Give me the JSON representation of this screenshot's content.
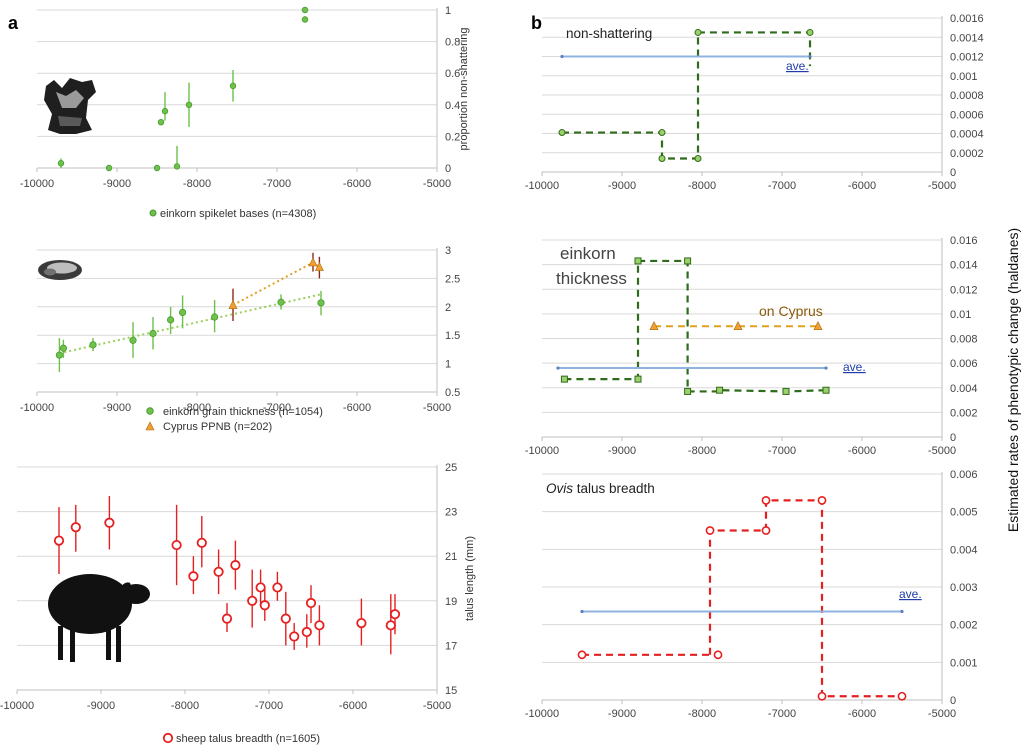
{
  "panel_labels": [
    "a",
    "b"
  ],
  "right_axis_title": "Estimated rates of phenotypic change (haldanes)",
  "colors": {
    "green_marker": "#6cc24a",
    "green_dark": "#2e6b1a",
    "orange_marker": "#f0a030",
    "orange_line": "#e0a020",
    "red": "#e52020",
    "ave_line": "#8fb3e0",
    "ave_text": "#1f3ea8",
    "grid": "#d9d9d9"
  },
  "icons": [
    "spikelet-base-photo",
    "grain-photo",
    "sheep-silhouette"
  ],
  "chart_data": [
    {
      "id": "a1",
      "type": "scatter",
      "legend": [
        "einkorn spikelet bases (n=4308)"
      ],
      "ylabel": "proportion non-shattering",
      "xlim": [
        -10000,
        -5000
      ],
      "ylim": [
        0,
        1
      ],
      "x_ticks": [
        "-10000",
        "-9000",
        "-8000",
        "-7000",
        "-6000",
        "-5000"
      ],
      "y_ticks": [
        "0",
        "0.2",
        "0.4",
        "0.6",
        "0.8",
        "1"
      ],
      "series": [
        {
          "name": "einkorn spikelet bases (n=4308)",
          "points": [
            {
              "x": -9700,
              "y": 0.03,
              "lo": 0.0,
              "hi": 0.06
            },
            {
              "x": -9100,
              "y": 0.0,
              "lo": 0.0,
              "hi": 0.01
            },
            {
              "x": -8500,
              "y": 0.0,
              "lo": 0.0,
              "hi": 0.01
            },
            {
              "x": -8450,
              "y": 0.29,
              "lo": 0.28,
              "hi": 0.3
            },
            {
              "x": -8400,
              "y": 0.36,
              "lo": 0.3,
              "hi": 0.48
            },
            {
              "x": -8250,
              "y": 0.01,
              "lo": 0.0,
              "hi": 0.14
            },
            {
              "x": -8100,
              "y": 0.4,
              "lo": 0.26,
              "hi": 0.54
            },
            {
              "x": -7550,
              "y": 0.52,
              "lo": 0.42,
              "hi": 0.62
            },
            {
              "x": -6650,
              "y": 0.94,
              "lo": 0.92,
              "hi": 0.96
            },
            {
              "x": -6650,
              "y": 1.0,
              "lo": 1.0,
              "hi": 1.0
            }
          ]
        }
      ]
    },
    {
      "id": "a2",
      "type": "scatter",
      "legend": [
        "einkorn grain thickness (n=1054)",
        "Cyprus PPNB (n=202)"
      ],
      "xlim": [
        -10000,
        -5000
      ],
      "ylim": [
        0.5,
        3
      ],
      "x_ticks": [
        "-10000",
        "-9000",
        "-8000",
        "-7000",
        "-6000",
        "-5000"
      ],
      "y_ticks": [
        "0.5",
        "1",
        "1.5",
        "2",
        "2.5",
        "3"
      ],
      "series": [
        {
          "name": "einkorn grain thickness (n=1054)",
          "trend": [
            [
              -9720,
              1.18
            ],
            [
              -6450,
              2.22
            ]
          ],
          "points": [
            {
              "x": -9720,
              "y": 1.15,
              "lo": 0.85,
              "hi": 1.45
            },
            {
              "x": -9670,
              "y": 1.27,
              "lo": 1.1,
              "hi": 1.42
            },
            {
              "x": -9300,
              "y": 1.33,
              "lo": 1.22,
              "hi": 1.45
            },
            {
              "x": -8800,
              "y": 1.41,
              "lo": 1.1,
              "hi": 1.73
            },
            {
              "x": -8550,
              "y": 1.53,
              "lo": 1.25,
              "hi": 1.82
            },
            {
              "x": -8330,
              "y": 1.77,
              "lo": 1.52,
              "hi": 2.0
            },
            {
              "x": -8180,
              "y": 1.9,
              "lo": 1.62,
              "hi": 2.2
            },
            {
              "x": -7780,
              "y": 1.82,
              "lo": 1.55,
              "hi": 2.12
            },
            {
              "x": -6950,
              "y": 2.08,
              "lo": 1.95,
              "hi": 2.22
            },
            {
              "x": -6450,
              "y": 2.07,
              "lo": 1.85,
              "hi": 2.28
            }
          ]
        },
        {
          "name": "Cyprus PPNB (n=202)",
          "trend": [
            [
              -7550,
              2.03
            ],
            [
              -6550,
              2.78
            ],
            [
              -6470,
              2.7
            ]
          ],
          "points": [
            {
              "x": -7550,
              "y": 2.03,
              "lo": 1.75,
              "hi": 2.32
            },
            {
              "x": -6550,
              "y": 2.78,
              "lo": 2.62,
              "hi": 2.95
            },
            {
              "x": -6470,
              "y": 2.7,
              "lo": 2.5,
              "hi": 2.88
            }
          ]
        }
      ]
    },
    {
      "id": "a3",
      "type": "scatter",
      "legend": [
        "sheep talus breadth (n=1605)"
      ],
      "ylabel": "talus length (mm)",
      "xlim": [
        -10000,
        -5000
      ],
      "ylim": [
        15,
        25
      ],
      "x_ticks": [
        "-10000",
        "-9000",
        "-8000",
        "-7000",
        "-6000",
        "-5000"
      ],
      "y_ticks": [
        "15",
        "17",
        "19",
        "21",
        "23",
        "25"
      ],
      "series": [
        {
          "name": "sheep talus breadth (n=1605)",
          "points": [
            {
              "x": -9500,
              "y": 21.7,
              "lo": 20.2,
              "hi": 23.2
            },
            {
              "x": -9300,
              "y": 22.3,
              "lo": 21.2,
              "hi": 23.3
            },
            {
              "x": -8900,
              "y": 22.5,
              "lo": 21.3,
              "hi": 23.7
            },
            {
              "x": -8100,
              "y": 21.5,
              "lo": 19.7,
              "hi": 23.3
            },
            {
              "x": -7900,
              "y": 20.1,
              "lo": 19.3,
              "hi": 21.0
            },
            {
              "x": -7800,
              "y": 21.6,
              "lo": 20.5,
              "hi": 22.8
            },
            {
              "x": -7600,
              "y": 20.3,
              "lo": 19.3,
              "hi": 21.3
            },
            {
              "x": -7500,
              "y": 18.2,
              "lo": 17.6,
              "hi": 18.9
            },
            {
              "x": -7400,
              "y": 20.6,
              "lo": 19.5,
              "hi": 21.7
            },
            {
              "x": -7200,
              "y": 19.0,
              "lo": 17.8,
              "hi": 20.4
            },
            {
              "x": -7100,
              "y": 19.6,
              "lo": 18.8,
              "hi": 20.4
            },
            {
              "x": -7050,
              "y": 18.8,
              "lo": 18.1,
              "hi": 19.6
            },
            {
              "x": -6900,
              "y": 19.6,
              "lo": 19.0,
              "hi": 20.3
            },
            {
              "x": -6800,
              "y": 18.2,
              "lo": 17.0,
              "hi": 19.4
            },
            {
              "x": -6700,
              "y": 17.4,
              "lo": 16.8,
              "hi": 18.0
            },
            {
              "x": -6550,
              "y": 17.6,
              "lo": 16.9,
              "hi": 18.4
            },
            {
              "x": -6500,
              "y": 18.9,
              "lo": 18.0,
              "hi": 19.7
            },
            {
              "x": -6400,
              "y": 17.9,
              "lo": 17.0,
              "hi": 18.8
            },
            {
              "x": -5900,
              "y": 18.0,
              "lo": 17.0,
              "hi": 19.1
            },
            {
              "x": -5550,
              "y": 17.9,
              "lo": 16.6,
              "hi": 19.3
            },
            {
              "x": -5500,
              "y": 18.4,
              "lo": 17.5,
              "hi": 19.3
            }
          ]
        }
      ]
    },
    {
      "id": "b1",
      "type": "line",
      "title": "non-shattering",
      "xlim": [
        -10000,
        -5000
      ],
      "ylim": [
        0,
        0.0016
      ],
      "x_ticks": [
        "-10000",
        "-9000",
        "-8000",
        "-7000",
        "-6000",
        "-5000"
      ],
      "y_ticks": [
        "0",
        "0.0002",
        "0.0004",
        "0.0006",
        "0.0008",
        "0.001",
        "0.0012",
        "0.0014",
        "0.0016"
      ],
      "series": [
        {
          "name": "rate",
          "step": [
            [
              -9750,
              0.00041
            ],
            [
              -8500,
              0.00041
            ],
            [
              -8500,
              0.00014
            ],
            [
              -8050,
              0.00014
            ],
            [
              -8050,
              0.00145
            ],
            [
              -6650,
              0.00145
            ],
            [
              -6650,
              0.0011
            ]
          ],
          "markers": [
            [
              -9750,
              0.00041
            ],
            [
              -8500,
              0.00041
            ],
            [
              -8500,
              0.00014
            ],
            [
              -8050,
              0.00014
            ],
            [
              -8050,
              0.00145
            ],
            [
              -6650,
              0.00145
            ]
          ]
        },
        {
          "name": "ave.",
          "line": [
            [
              -9750,
              0.0012
            ],
            [
              -6650,
              0.0012
            ]
          ]
        }
      ],
      "annotations": [
        "ave."
      ]
    },
    {
      "id": "b2",
      "type": "line",
      "title_lines": [
        "einkorn",
        "thickness"
      ],
      "xlim": [
        -10000,
        -5000
      ],
      "ylim": [
        0,
        0.016
      ],
      "x_ticks": [
        "-10000",
        "-9000",
        "-8000",
        "-7000",
        "-6000",
        "-5000"
      ],
      "y_ticks": [
        "0",
        "0.002",
        "0.004",
        "0.006",
        "0.008",
        "0.01",
        "0.012",
        "0.014",
        "0.016"
      ],
      "series": [
        {
          "name": "rate",
          "step": [
            [
              -9720,
              0.0047
            ],
            [
              -8800,
              0.0047
            ],
            [
              -8800,
              0.0143
            ],
            [
              -8180,
              0.0143
            ],
            [
              -8180,
              0.0037
            ],
            [
              -7780,
              0.0037
            ],
            [
              -7780,
              0.0038
            ],
            [
              -6950,
              0.0037
            ],
            [
              -6450,
              0.0038
            ]
          ],
          "markers": [
            [
              -9720,
              0.0047
            ],
            [
              -8800,
              0.0047
            ],
            [
              -8800,
              0.0143
            ],
            [
              -8180,
              0.0143
            ],
            [
              -8180,
              0.0037
            ],
            [
              -7780,
              0.0038
            ],
            [
              -6950,
              0.0037
            ],
            [
              -6450,
              0.0038
            ]
          ]
        },
        {
          "name": "on Cyprus",
          "line": [
            [
              -8600,
              0.009
            ],
            [
              -7550,
              0.009
            ],
            [
              -6550,
              0.009
            ]
          ],
          "markers": [
            [
              -8600,
              0.009
            ],
            [
              -7550,
              0.009
            ],
            [
              -6550,
              0.009
            ]
          ]
        },
        {
          "name": "ave.",
          "line": [
            [
              -9800,
              0.0056
            ],
            [
              -6450,
              0.0056
            ]
          ]
        }
      ],
      "annotations": [
        "on Cyprus",
        "ave."
      ]
    },
    {
      "id": "b3",
      "type": "line",
      "title_italic": "Ovis",
      "title_rest": " talus breadth",
      "xlim": [
        -10000,
        -5000
      ],
      "ylim": [
        0,
        0.006
      ],
      "x_ticks": [
        "-10000",
        "-9000",
        "-8000",
        "-7000",
        "-6000",
        "-5000"
      ],
      "y_ticks": [
        "0",
        "0.001",
        "0.002",
        "0.003",
        "0.004",
        "0.005",
        "0.006"
      ],
      "series": [
        {
          "name": "rate",
          "step": [
            [
              -9500,
              0.0012
            ],
            [
              -7800,
              0.0012
            ],
            [
              -7900,
              0.0012
            ],
            [
              -7900,
              0.0045
            ],
            [
              -7200,
              0.0045
            ],
            [
              -7200,
              0.0053
            ],
            [
              -6500,
              0.0053
            ],
            [
              -6500,
              0.0001
            ],
            [
              -5500,
              0.0001
            ]
          ],
          "markers": [
            [
              -9500,
              0.0012
            ],
            [
              -7800,
              0.0012
            ],
            [
              -7900,
              0.0045
            ],
            [
              -7200,
              0.0045
            ],
            [
              -7200,
              0.0053
            ],
            [
              -6500,
              0.0053
            ],
            [
              -6500,
              0.0001
            ],
            [
              -5500,
              0.0001
            ]
          ]
        },
        {
          "name": "ave.",
          "line": [
            [
              -9500,
              0.00235
            ],
            [
              -5500,
              0.00235
            ]
          ]
        }
      ],
      "annotations": [
        "ave."
      ]
    }
  ]
}
